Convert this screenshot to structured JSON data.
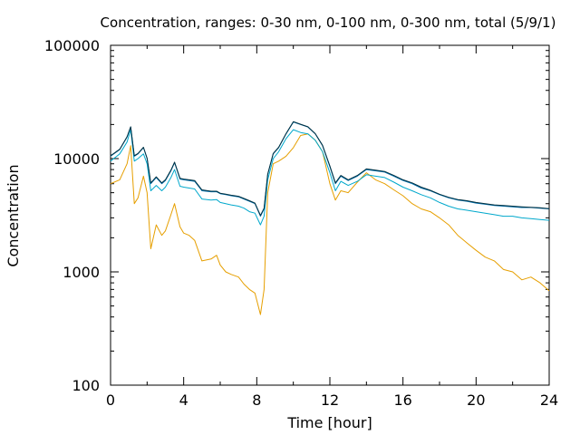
{
  "chart_data": {
    "type": "line",
    "title": "Concentration, ranges: 0-30 nm, 0-100 nm, 0-300 nm, total (5/9/1)",
    "xlabel": "Time [hour]",
    "ylabel": "Concentration",
    "xlim": [
      0,
      24
    ],
    "ylim": [
      100,
      100000
    ],
    "yscale": "log",
    "x_ticks": [
      "0",
      "4",
      "8",
      "12",
      "16",
      "20",
      "24"
    ],
    "y_ticks": [
      "100",
      "1000",
      "10000",
      "100000"
    ],
    "grid": false,
    "legend": "none",
    "series": [
      {
        "color": "#e69f00",
        "x": [
          0,
          0.5,
          0.9,
          1.1,
          1.3,
          1.5,
          1.8,
          2.0,
          2.2,
          2.5,
          2.8,
          3.0,
          3.3,
          3.5,
          3.8,
          4.0,
          4.3,
          4.6,
          5.0,
          5.5,
          5.8,
          6.0,
          6.3,
          6.6,
          7.0,
          7.3,
          7.6,
          7.9,
          8.2,
          8.4,
          8.6,
          8.9,
          9.2,
          9.6,
          10.0,
          10.4,
          10.8,
          11.2,
          11.6,
          12.0,
          12.3,
          12.6,
          13.0,
          13.5,
          14.0,
          14.5,
          15.0,
          15.5,
          16.0,
          16.5,
          17.0,
          17.5,
          18.0,
          18.5,
          19.0,
          19.5,
          20.0,
          20.5,
          21.0,
          21.5,
          22.0,
          22.5,
          23.0,
          23.5,
          24.0
        ],
        "y": [
          6000,
          6500,
          9000,
          13000,
          4000,
          4500,
          7000,
          5000,
          1600,
          2600,
          2100,
          2300,
          3200,
          4000,
          2500,
          2200,
          2100,
          1900,
          1250,
          1300,
          1400,
          1150,
          1000,
          950,
          900,
          780,
          700,
          650,
          420,
          700,
          5000,
          9000,
          9500,
          10500,
          12500,
          16000,
          16500,
          14500,
          11500,
          6000,
          4300,
          5200,
          5000,
          6200,
          7500,
          6500,
          6000,
          5300,
          4700,
          4000,
          3600,
          3400,
          3000,
          2600,
          2100,
          1800,
          1550,
          1350,
          1250,
          1050,
          1000,
          850,
          900,
          800,
          680
        ]
      },
      {
        "color": "#00a8cc",
        "x": [
          0,
          0.5,
          0.9,
          1.1,
          1.3,
          1.5,
          1.8,
          2.0,
          2.2,
          2.5,
          2.8,
          3.0,
          3.3,
          3.5,
          3.8,
          4.0,
          4.3,
          4.6,
          5.0,
          5.5,
          5.8,
          6.0,
          6.3,
          6.6,
          7.0,
          7.3,
          7.6,
          7.9,
          8.2,
          8.4,
          8.6,
          8.9,
          9.2,
          9.6,
          10.0,
          10.4,
          10.8,
          11.2,
          11.6,
          12.0,
          12.3,
          12.6,
          13.0,
          13.5,
          14.0,
          14.5,
          15.0,
          15.5,
          16.0,
          16.5,
          17.0,
          17.5,
          18.0,
          18.5,
          19.0,
          19.5,
          20.0,
          20.5,
          21.0,
          21.5,
          22.0,
          22.5,
          23.0,
          23.5,
          24.0
        ],
        "y": [
          9500,
          11000,
          14000,
          18000,
          9500,
          10000,
          11000,
          9000,
          5200,
          5800,
          5200,
          5600,
          6800,
          8000,
          5700,
          5600,
          5500,
          5400,
          4400,
          4300,
          4350,
          4100,
          4000,
          3900,
          3800,
          3650,
          3400,
          3300,
          2600,
          3100,
          6500,
          10000,
          11500,
          15000,
          18000,
          17000,
          16500,
          14500,
          11500,
          7500,
          5200,
          6300,
          5800,
          6300,
          7200,
          7000,
          6800,
          6200,
          5600,
          5200,
          4800,
          4500,
          4100,
          3800,
          3600,
          3500,
          3400,
          3300,
          3200,
          3100,
          3100,
          3000,
          2950,
          2900,
          2850
        ]
      },
      {
        "color": "#0072b2",
        "x": [
          0,
          0.5,
          0.9,
          1.1,
          1.3,
          1.5,
          1.8,
          2.0,
          2.2,
          2.5,
          2.8,
          3.0,
          3.3,
          3.5,
          3.8,
          4.0,
          4.3,
          4.6,
          5.0,
          5.5,
          5.8,
          6.0,
          6.3,
          6.6,
          7.0,
          7.3,
          7.6,
          7.9,
          8.2,
          8.4,
          8.6,
          8.9,
          9.2,
          9.6,
          10.0,
          10.4,
          10.8,
          11.2,
          11.6,
          12.0,
          12.3,
          12.6,
          13.0,
          13.5,
          14.0,
          14.5,
          15.0,
          15.5,
          16.0,
          16.5,
          17.0,
          17.5,
          18.0,
          18.5,
          19.0,
          19.5,
          20.0,
          20.5,
          21.0,
          21.5,
          22.0,
          22.5,
          23.0,
          23.5,
          24.0
        ],
        "y": [
          10500,
          12000,
          15500,
          19000,
          10500,
          11000,
          12500,
          10000,
          6000,
          6800,
          6000,
          6400,
          7800,
          9200,
          6600,
          6500,
          6400,
          6300,
          5200,
          5100,
          5100,
          4900,
          4800,
          4700,
          4600,
          4400,
          4200,
          4000,
          3100,
          3600,
          7200,
          11000,
          12500,
          16500,
          21000,
          20000,
          19000,
          16500,
          13000,
          8500,
          6000,
          7000,
          6400,
          7000,
          8000,
          7800,
          7600,
          7000,
          6400,
          6000,
          5500,
          5200,
          4800,
          4500,
          4300,
          4200,
          4050,
          3950,
          3850,
          3800,
          3750,
          3700,
          3700,
          3650,
          3600
        ]
      },
      {
        "color": "#003040",
        "x": [
          0,
          0.5,
          0.9,
          1.1,
          1.3,
          1.5,
          1.8,
          2.0,
          2.2,
          2.5,
          2.8,
          3.0,
          3.3,
          3.5,
          3.8,
          4.0,
          4.3,
          4.6,
          5.0,
          5.5,
          5.8,
          6.0,
          6.3,
          6.6,
          7.0,
          7.3,
          7.6,
          7.9,
          8.2,
          8.4,
          8.6,
          8.9,
          9.2,
          9.6,
          10.0,
          10.4,
          10.8,
          11.2,
          11.6,
          12.0,
          12.3,
          12.6,
          13.0,
          13.5,
          14.0,
          14.5,
          15.0,
          15.5,
          16.0,
          16.5,
          17.0,
          17.5,
          18.0,
          18.5,
          19.0,
          19.5,
          20.0,
          20.5,
          21.0,
          21.5,
          22.0,
          22.5,
          23.0,
          23.5,
          24.0
        ],
        "y": [
          10600,
          12100,
          15600,
          19100,
          10600,
          11100,
          12600,
          10100,
          6100,
          6900,
          6100,
          6500,
          7900,
          9300,
          6700,
          6600,
          6500,
          6400,
          5300,
          5150,
          5150,
          4950,
          4850,
          4750,
          4650,
          4450,
          4250,
          4050,
          3150,
          3650,
          7300,
          11100,
          12600,
          16600,
          21200,
          20100,
          19100,
          16600,
          13100,
          8600,
          6100,
          7100,
          6500,
          7100,
          8100,
          7900,
          7700,
          7100,
          6500,
          6100,
          5600,
          5250,
          4850,
          4550,
          4350,
          4250,
          4100,
          4000,
          3900,
          3850,
          3800,
          3750,
          3720,
          3680,
          3620
        ]
      }
    ]
  }
}
